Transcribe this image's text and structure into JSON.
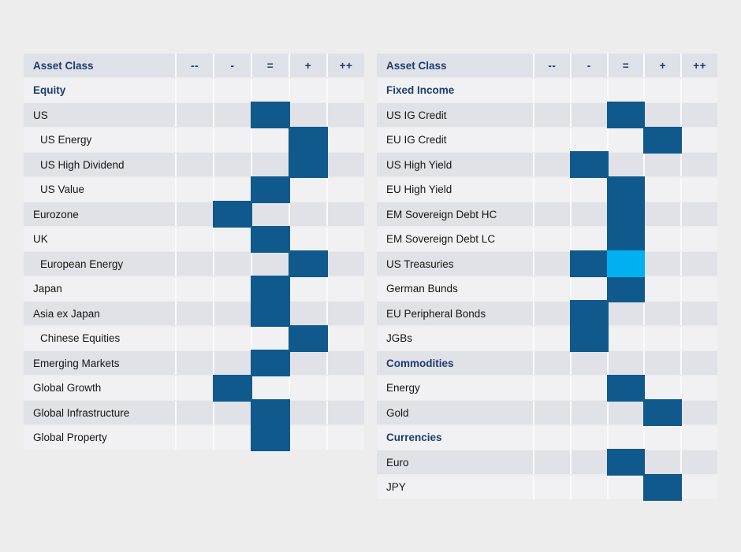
{
  "colors": {
    "page_bg": "#ededee",
    "gap_color": "#fafafa",
    "header_bg": "#dfe1e8",
    "row_dark": "#e1e2e7",
    "row_light": "#f1f1f3",
    "navy_text": "#1d3c6f",
    "label_text": "#161616",
    "highlight_dark": "#10598c",
    "highlight_cyan": "#00b0f0"
  },
  "rating_columns": [
    "--",
    "-",
    "=",
    "+",
    "++"
  ],
  "chart_data": [
    {
      "type": "table",
      "title": "Asset Class positioning (left table)",
      "header_label": "Asset Class",
      "columns": [
        "--",
        "-",
        "=",
        "+",
        "++"
      ],
      "rows": [
        {
          "label": "Equity",
          "section": true,
          "indent": false,
          "shade": "light",
          "highlights": []
        },
        {
          "label": "US",
          "section": false,
          "indent": false,
          "shade": "dark",
          "highlights": [
            {
              "col": 2,
              "style": "dark"
            }
          ]
        },
        {
          "label": "US Energy",
          "section": false,
          "indent": true,
          "shade": "light",
          "highlights": [
            {
              "col": 3,
              "style": "dark"
            }
          ]
        },
        {
          "label": "US High Dividend",
          "section": false,
          "indent": true,
          "shade": "dark",
          "highlights": [
            {
              "col": 3,
              "style": "dark"
            }
          ]
        },
        {
          "label": "US Value",
          "section": false,
          "indent": true,
          "shade": "light",
          "highlights": [
            {
              "col": 2,
              "style": "dark"
            }
          ]
        },
        {
          "label": "Eurozone",
          "section": false,
          "indent": false,
          "shade": "dark",
          "highlights": [
            {
              "col": 1,
              "style": "dark"
            }
          ]
        },
        {
          "label": "UK",
          "section": false,
          "indent": false,
          "shade": "light",
          "highlights": [
            {
              "col": 2,
              "style": "dark"
            }
          ]
        },
        {
          "label": "European Energy",
          "section": false,
          "indent": true,
          "shade": "dark",
          "highlights": [
            {
              "col": 3,
              "style": "dark"
            }
          ]
        },
        {
          "label": "Japan",
          "section": false,
          "indent": false,
          "shade": "light",
          "highlights": [
            {
              "col": 2,
              "style": "dark"
            }
          ]
        },
        {
          "label": "Asia ex Japan",
          "section": false,
          "indent": false,
          "shade": "dark",
          "highlights": [
            {
              "col": 2,
              "style": "dark"
            }
          ]
        },
        {
          "label": "Chinese Equities",
          "section": false,
          "indent": true,
          "shade": "light",
          "highlights": [
            {
              "col": 3,
              "style": "dark"
            }
          ]
        },
        {
          "label": "Emerging Markets",
          "section": false,
          "indent": false,
          "shade": "dark",
          "highlights": [
            {
              "col": 2,
              "style": "dark"
            }
          ]
        },
        {
          "label": "Global Growth",
          "section": false,
          "indent": false,
          "shade": "light",
          "highlights": [
            {
              "col": 1,
              "style": "dark"
            }
          ]
        },
        {
          "label": "Global Infrastructure",
          "section": false,
          "indent": false,
          "shade": "dark",
          "highlights": [
            {
              "col": 2,
              "style": "dark"
            }
          ]
        },
        {
          "label": "Global Property",
          "section": false,
          "indent": false,
          "shade": "light",
          "highlights": [
            {
              "col": 2,
              "style": "dark"
            }
          ]
        }
      ]
    },
    {
      "type": "table",
      "title": "Asset Class positioning (right table)",
      "header_label": "Asset Class",
      "columns": [
        "--",
        "-",
        "=",
        "+",
        "++"
      ],
      "rows": [
        {
          "label": "Fixed Income",
          "section": true,
          "indent": false,
          "shade": "light",
          "highlights": []
        },
        {
          "label": "US IG Credit",
          "section": false,
          "indent": false,
          "shade": "dark",
          "highlights": [
            {
              "col": 2,
              "style": "dark"
            }
          ]
        },
        {
          "label": "EU IG Credit",
          "section": false,
          "indent": false,
          "shade": "light",
          "highlights": [
            {
              "col": 3,
              "style": "dark"
            }
          ]
        },
        {
          "label": "US High Yield",
          "section": false,
          "indent": false,
          "shade": "dark",
          "highlights": [
            {
              "col": 1,
              "style": "dark"
            }
          ]
        },
        {
          "label": "EU High Yield",
          "section": false,
          "indent": false,
          "shade": "light",
          "highlights": [
            {
              "col": 2,
              "style": "dark"
            }
          ]
        },
        {
          "label": "EM Sovereign Debt HC",
          "section": false,
          "indent": false,
          "shade": "dark",
          "highlights": [
            {
              "col": 2,
              "style": "dark"
            }
          ]
        },
        {
          "label": "EM Sovereign Debt LC",
          "section": false,
          "indent": false,
          "shade": "light",
          "highlights": [
            {
              "col": 2,
              "style": "dark"
            }
          ]
        },
        {
          "label": "US Treasuries",
          "section": false,
          "indent": false,
          "shade": "dark",
          "highlights": [
            {
              "col": 1,
              "style": "dark"
            },
            {
              "col": 2,
              "style": "cyan"
            }
          ]
        },
        {
          "label": "German Bunds",
          "section": false,
          "indent": false,
          "shade": "light",
          "highlights": [
            {
              "col": 2,
              "style": "dark"
            }
          ]
        },
        {
          "label": "EU Peripheral Bonds",
          "section": false,
          "indent": false,
          "shade": "dark",
          "highlights": [
            {
              "col": 1,
              "style": "dark"
            }
          ]
        },
        {
          "label": "JGBs",
          "section": false,
          "indent": false,
          "shade": "light",
          "highlights": [
            {
              "col": 1,
              "style": "dark"
            }
          ]
        },
        {
          "label": "Commodities",
          "section": true,
          "indent": false,
          "shade": "dark",
          "highlights": []
        },
        {
          "label": "Energy",
          "section": false,
          "indent": false,
          "shade": "light",
          "highlights": [
            {
              "col": 2,
              "style": "dark"
            }
          ]
        },
        {
          "label": "Gold",
          "section": false,
          "indent": false,
          "shade": "dark",
          "highlights": [
            {
              "col": 3,
              "style": "dark"
            }
          ]
        },
        {
          "label": "Currencies",
          "section": true,
          "indent": false,
          "shade": "light",
          "highlights": []
        },
        {
          "label": "Euro",
          "section": false,
          "indent": false,
          "shade": "dark",
          "highlights": [
            {
              "col": 2,
              "style": "dark"
            }
          ]
        },
        {
          "label": "JPY",
          "section": false,
          "indent": false,
          "shade": "light",
          "highlights": [
            {
              "col": 3,
              "style": "dark"
            }
          ]
        }
      ]
    }
  ]
}
